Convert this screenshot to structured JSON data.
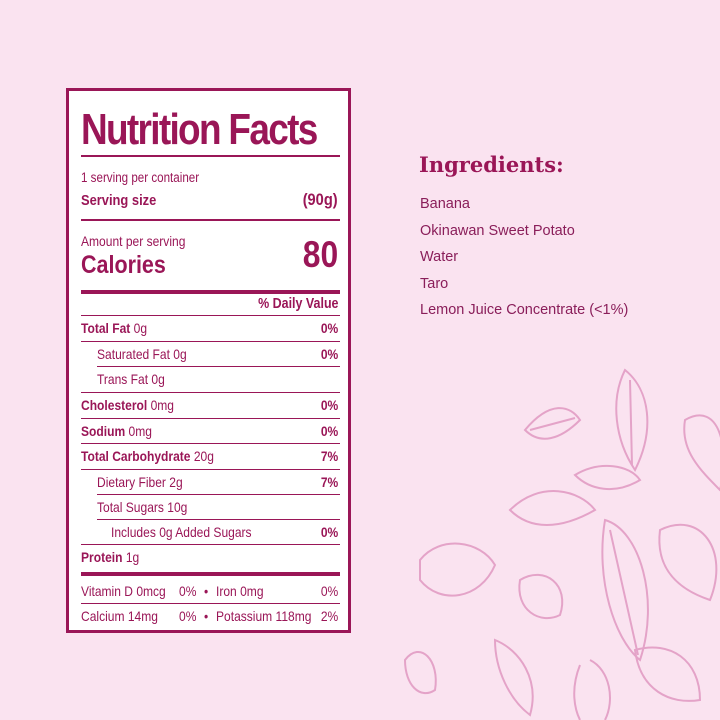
{
  "label": {
    "title": "Nutrition Facts",
    "servings": "1 serving per container",
    "serving_size_label": "Serving size",
    "serving_size_value": "(90g)",
    "amount_per_serving": "Amount per serving",
    "calories_label": "Calories",
    "calories_value": "80",
    "daily_value_header": "% Daily Value",
    "rows": [
      {
        "name": "Total Fat",
        "amount": "0g",
        "pct": "0%"
      },
      {
        "name": "Saturated Fat",
        "amount": "0g",
        "pct": "0%"
      },
      {
        "name": "Trans Fat",
        "amount": "0g",
        "pct": ""
      },
      {
        "name": "Cholesterol",
        "amount": "0mg",
        "pct": "0%"
      },
      {
        "name": "Sodium",
        "amount": "0mg",
        "pct": "0%"
      },
      {
        "name": "Total Carbohydrate",
        "amount": "20g",
        "pct": "7%"
      },
      {
        "name": "Dietary Fiber",
        "amount": "2g",
        "pct": "7%"
      },
      {
        "name": "Total Sugars",
        "amount": "10g",
        "pct": ""
      },
      {
        "name": "Includes 0g Added Sugars",
        "amount": "",
        "pct": "0%"
      },
      {
        "name": "Protein",
        "amount": "1g",
        "pct": ""
      }
    ],
    "micros": [
      {
        "left": "Vitamin D 0mcg",
        "left_pct": "0%",
        "bullet": "•",
        "right": "Iron 0mg",
        "right_pct": "0%"
      },
      {
        "left": "Calcium 14mg",
        "left_pct": "0%",
        "bullet": "•",
        "right": "Potassium 118mg",
        "right_pct": "2%"
      }
    ]
  },
  "ingredients": {
    "title": "Ingredients:",
    "items": [
      "Banana",
      "Okinawan Sweet Potato",
      "Water",
      "Taro",
      "Lemon Juice Concentrate (<1%)"
    ]
  },
  "colors": {
    "background": "#fae3f0",
    "accent": "#9a1657",
    "illustration": "#e4a3c8"
  }
}
